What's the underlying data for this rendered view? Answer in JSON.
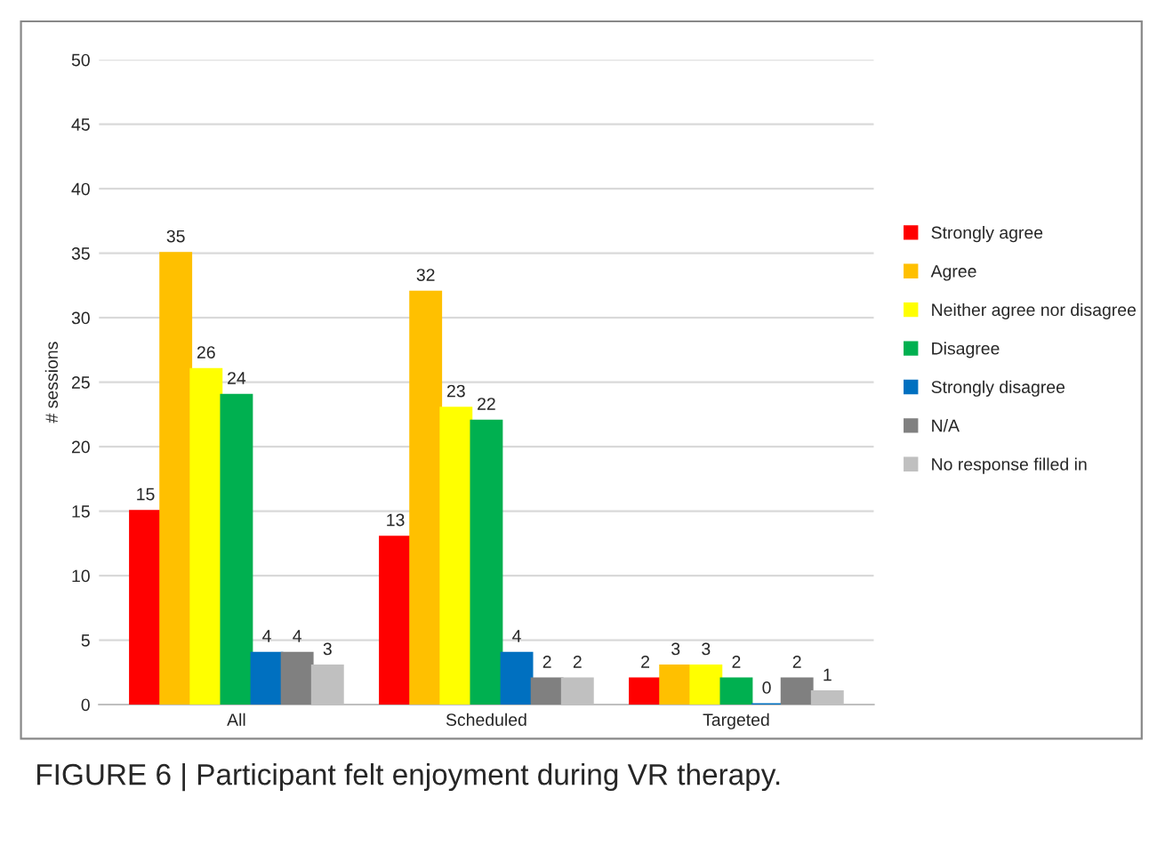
{
  "chart_data": {
    "type": "bar",
    "ylabel": "# sessions",
    "categories": [
      "All",
      "Scheduled",
      "Targeted"
    ],
    "series": [
      {
        "name": "Strongly agree",
        "color": "#ff0000",
        "values": [
          15,
          13,
          2
        ]
      },
      {
        "name": "Agree",
        "color": "#ffc000",
        "values": [
          35,
          32,
          3
        ]
      },
      {
        "name": "Neither agree nor disagree",
        "color": "#ffff00",
        "values": [
          26,
          23,
          3
        ]
      },
      {
        "name": "Disagree",
        "color": "#00b050",
        "values": [
          24,
          22,
          2
        ]
      },
      {
        "name": "Strongly disagree",
        "color": "#0070c0",
        "values": [
          4,
          4,
          0
        ]
      },
      {
        "name": "N/A",
        "color": "#808080",
        "values": [
          4,
          2,
          2
        ]
      },
      {
        "name": "No response filled in",
        "color": "#c0c0c0",
        "values": [
          3,
          2,
          1
        ]
      }
    ],
    "ylim": [
      0,
      50
    ],
    "yticks": [
      0,
      5,
      10,
      15,
      20,
      25,
      30,
      35,
      40,
      45,
      50
    ],
    "grid": "y",
    "legend": "right",
    "data_labels": true,
    "annotations": [
      "FIGURE 6 | Participant felt enjoyment during VR therapy."
    ]
  }
}
